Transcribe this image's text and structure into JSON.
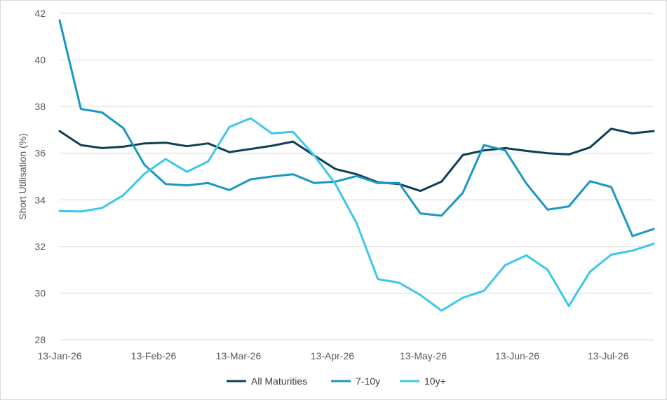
{
  "chart_data": {
    "type": "line",
    "title": "",
    "xlabel": "",
    "ylabel": "Short Utilisation (%)",
    "ylim": [
      28,
      42
    ],
    "yticks": [
      28,
      30,
      32,
      34,
      36,
      38,
      40,
      42
    ],
    "grid": true,
    "legend": "bottom",
    "x": [
      "2026-01-13",
      "2026-01-20",
      "2026-01-27",
      "2026-02-03",
      "2026-02-10",
      "2026-02-17",
      "2026-02-24",
      "2026-03-03",
      "2026-03-10",
      "2026-03-17",
      "2026-03-24",
      "2026-03-31",
      "2026-04-07",
      "2026-04-14",
      "2026-04-21",
      "2026-04-28",
      "2026-05-05",
      "2026-05-12",
      "2026-05-19",
      "2026-05-26",
      "2026-06-02",
      "2026-06-09",
      "2026-06-16",
      "2026-06-23",
      "2026-06-30",
      "2026-07-07",
      "2026-07-14",
      "2026-07-21",
      "2026-07-28"
    ],
    "xtick_labels": [
      "13-Jan-26",
      "13-Feb-26",
      "13-Mar-26",
      "13-Apr-26",
      "13-May-26",
      "13-Jun-26",
      "13-Jul-26"
    ],
    "xtick_dates": [
      "2026-01-13",
      "2026-02-13",
      "2026-03-13",
      "2026-04-13",
      "2026-05-13",
      "2026-06-13",
      "2026-07-13"
    ],
    "series": [
      {
        "name": "All Maturities",
        "color": "#0d3f55",
        "values": [
          36.95,
          36.35,
          36.22,
          36.28,
          36.42,
          36.45,
          36.3,
          36.42,
          36.05,
          36.18,
          36.32,
          36.5,
          35.9,
          35.32,
          35.1,
          34.75,
          34.68,
          34.38,
          34.78,
          35.92,
          36.12,
          36.22,
          36.1,
          36.0,
          35.95,
          36.25,
          37.05,
          36.85,
          36.95
        ]
      },
      {
        "name": "7-10y",
        "color": "#1a97c5",
        "values": [
          41.7,
          37.9,
          37.75,
          37.08,
          35.5,
          34.68,
          34.62,
          34.72,
          34.42,
          34.88,
          35.0,
          35.1,
          34.72,
          34.78,
          35.02,
          34.72,
          34.72,
          33.42,
          33.32,
          34.3,
          36.35,
          36.12,
          34.7,
          33.58,
          33.72,
          34.8,
          34.55,
          32.45,
          32.75
        ]
      },
      {
        "name": "10y+",
        "color": "#3cc7f0",
        "values": [
          33.52,
          33.5,
          33.65,
          34.2,
          35.12,
          35.75,
          35.2,
          35.65,
          37.12,
          37.5,
          36.85,
          36.92,
          35.9,
          34.68,
          33.0,
          30.6,
          30.45,
          29.92,
          29.25,
          29.8,
          30.1,
          31.2,
          31.62,
          31.0,
          29.45,
          30.92,
          31.65,
          31.82,
          32.12
        ]
      }
    ]
  }
}
